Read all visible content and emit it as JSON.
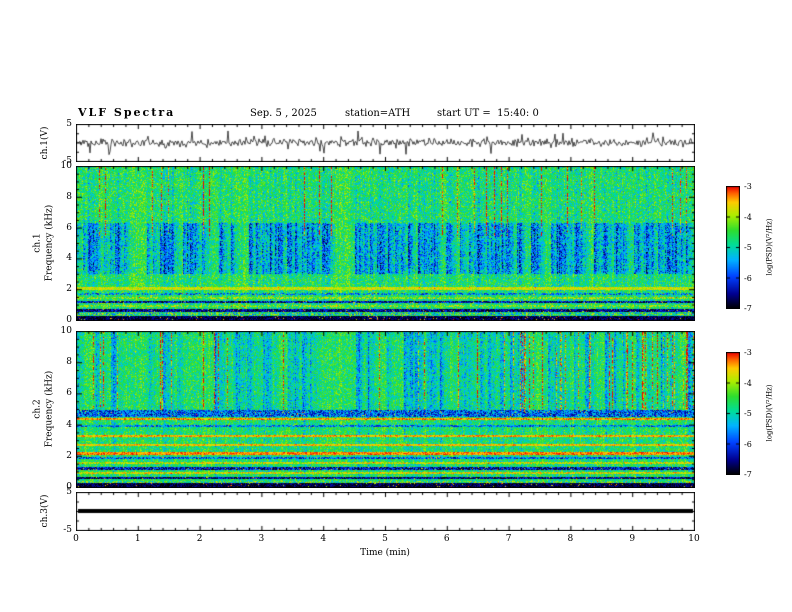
{
  "header": {
    "title": "VLF Spectra",
    "date": "Sep. 5 , 2025",
    "station": "station=ATH",
    "start_ut": "start UT =  15:40: 0"
  },
  "xaxis": {
    "label": "Time (min)",
    "ticks": [
      0,
      1,
      2,
      3,
      4,
      5,
      6,
      7,
      8,
      9,
      10
    ],
    "range": [
      0,
      10
    ]
  },
  "colormap": {
    "stops": [
      [
        0.0,
        "#000000"
      ],
      [
        0.12,
        "#000090"
      ],
      [
        0.26,
        "#0040ff"
      ],
      [
        0.4,
        "#00b4ff"
      ],
      [
        0.52,
        "#00dd99"
      ],
      [
        0.64,
        "#2edd2e"
      ],
      [
        0.76,
        "#aaee00"
      ],
      [
        0.87,
        "#ffcc00"
      ],
      [
        0.94,
        "#ff6600"
      ],
      [
        1.0,
        "#ee0000"
      ]
    ]
  },
  "chart_data": [
    {
      "id": "ch1_wave",
      "type": "line",
      "ylabel": "ch.1(V)",
      "ylim": [
        -5,
        5
      ],
      "yticks": [
        5,
        -5
      ],
      "x_range": [
        0,
        10
      ],
      "summary": "Broadband noisy voltage trace of channel 1 centered on 0 V with frequent impulsive spikes up to about ±4 V over the 10 minute record",
      "render": {
        "seed": 11,
        "noise": 0.55,
        "spike_prob": 0.05,
        "spike_amp": 3.6
      }
    },
    {
      "id": "ch1_spec",
      "type": "heatmap",
      "channel": "ch.1",
      "ylabel": "Frequency (kHz)",
      "ylabel_full": "ch.1\nFrequency (kHz)",
      "ylim": [
        0,
        10
      ],
      "yticks": [
        0,
        2,
        4,
        6,
        8,
        10
      ],
      "x_range": [
        0,
        10
      ],
      "colorbar": {
        "label": "log(PSD)(V²/Hz)",
        "ticks": [
          -3,
          -4,
          -5,
          -6,
          -7
        ],
        "range": [
          -7,
          -3
        ]
      },
      "summary": "Spectrogram 0-10 kHz over 10 min: green/cyan noise background around -4.5, dense dark-blue vertical dropout streaks between 3 and 6 kHz, red/orange impulsive streaks above 6 kHz, bright yellow-green line near 2.1 kHz, alternating dark and bright horizontal bands below 2 kHz, near-black band at 0 kHz",
      "render": {
        "seed": 7,
        "base": 0.62,
        "noise": 0.16,
        "streak_prob": 0.22,
        "streak_gain": 0.1,
        "blue_band": [
          3.0,
          6.3
        ],
        "blue_gain": 0.4,
        "red_prob": 0.05,
        "red_min_f": 5.5,
        "red_gain": 0.65,
        "lines": [
          {
            "f": 2.08,
            "w": 0.1,
            "v": 0.8,
            "jit": 0.1,
            "spk": 0.01
          },
          {
            "f": 1.72,
            "w": 0.06,
            "v": 0.4,
            "jit": 0.25,
            "spk": 0.02
          },
          {
            "f": 1.45,
            "w": 0.06,
            "v": 0.7,
            "jit": 0.18,
            "spk": 0.01
          },
          {
            "f": 1.18,
            "w": 0.07,
            "v": 0.16,
            "jit": 0.18,
            "spk": 0.03
          },
          {
            "f": 0.92,
            "w": 0.06,
            "v": 0.68,
            "jit": 0.2,
            "spk": 0.02
          },
          {
            "f": 0.65,
            "w": 0.07,
            "v": 0.12,
            "jit": 0.15,
            "spk": 0.03
          },
          {
            "f": 0.4,
            "w": 0.06,
            "v": 0.55,
            "jit": 0.3,
            "spk": 0.02
          },
          {
            "f": 0.15,
            "w": 0.15,
            "v": 0.06,
            "jit": 0.1,
            "spk": 0.04
          }
        ]
      }
    },
    {
      "id": "ch2_spec",
      "type": "heatmap",
      "channel": "ch.2",
      "ylabel": "Frequency (kHz)",
      "ylabel_full": "ch.2\nFrequency (kHz)",
      "ylim": [
        0,
        10
      ],
      "yticks": [
        0,
        2,
        4,
        6,
        8,
        10
      ],
      "x_range": [
        0,
        10
      ],
      "colorbar": {
        "label": "log(PSD)(V²/Hz)",
        "ticks": [
          -3,
          -4,
          -5,
          -6,
          -7
        ],
        "range": [
          -7,
          -3
        ]
      },
      "summary": "Spectrogram 0-10 kHz over 10 min: greener background than ch.1, moderate blue vertical dropouts above 5 kHz, red/orange speckled streaks near top, strong orange-red horizontal interference lines near 2.2, 2.75, 3.3 and 4.4 kHz, blue band near 4.7 kHz, banded structure with dark rows below 2 kHz, near-black band at 0 kHz",
      "render": {
        "seed": 23,
        "base": 0.6,
        "noise": 0.15,
        "streak_prob": 0.1,
        "streak_gain": 0.1,
        "blue_band": [
          5.0,
          10.0
        ],
        "blue_gain": 0.26,
        "red_prob": 0.05,
        "red_min_f": 5.0,
        "red_gain": 0.55,
        "lines": [
          {
            "f": 4.72,
            "w": 0.22,
            "v": 0.3,
            "jit": 0.22,
            "spk": 0.02
          },
          {
            "f": 4.38,
            "w": 0.08,
            "v": 0.9,
            "jit": 0.1,
            "spk": 0.02
          },
          {
            "f": 3.95,
            "w": 0.06,
            "v": 0.35,
            "jit": 0.2,
            "spk": 0.02
          },
          {
            "f": 3.3,
            "w": 0.07,
            "v": 0.88,
            "jit": 0.1,
            "spk": 0.02
          },
          {
            "f": 2.75,
            "w": 0.07,
            "v": 0.86,
            "jit": 0.1,
            "spk": 0.02
          },
          {
            "f": 2.2,
            "w": 0.09,
            "v": 0.92,
            "jit": 0.08,
            "spk": 0.02
          },
          {
            "f": 1.9,
            "w": 0.05,
            "v": 0.3,
            "jit": 0.2,
            "spk": 0.02
          },
          {
            "f": 1.55,
            "w": 0.06,
            "v": 0.78,
            "jit": 0.15,
            "spk": 0.02
          },
          {
            "f": 1.22,
            "w": 0.07,
            "v": 0.16,
            "jit": 0.18,
            "spk": 0.03
          },
          {
            "f": 0.92,
            "w": 0.06,
            "v": 0.8,
            "jit": 0.15,
            "spk": 0.02
          },
          {
            "f": 0.62,
            "w": 0.07,
            "v": 0.12,
            "jit": 0.15,
            "spk": 0.03
          },
          {
            "f": 0.35,
            "w": 0.06,
            "v": 0.6,
            "jit": 0.25,
            "spk": 0.02
          },
          {
            "f": 0.13,
            "w": 0.13,
            "v": 0.06,
            "jit": 0.1,
            "spk": 0.04
          }
        ]
      }
    },
    {
      "id": "ch3_wave",
      "type": "line",
      "ylabel": "ch.3(V)",
      "ylim": [
        -5,
        5
      ],
      "yticks": [
        5,
        -5
      ],
      "x_range": [
        0,
        10
      ],
      "summary": "Channel 3 trace is a flat thick black line at 0 V for the whole record (no signal / saturated constant)",
      "render": {
        "flat_value": 0,
        "thickness": 4
      }
    }
  ]
}
